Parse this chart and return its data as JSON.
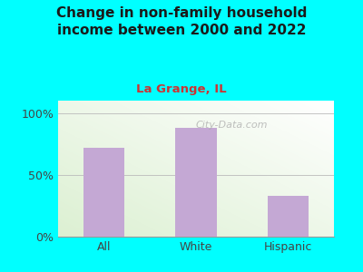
{
  "title": "Change in non-family household\nincome between 2000 and 2022",
  "subtitle": "La Grange, IL",
  "categories": [
    "All",
    "White",
    "Hispanic"
  ],
  "values": [
    72,
    88,
    33
  ],
  "bar_color": "#c4a8d4",
  "title_color": "#1a1a1a",
  "subtitle_color": "#cc3333",
  "background_outer": "#00ffff",
  "yticks": [
    0,
    50,
    100
  ],
  "ytick_labels": [
    "0%",
    "50%",
    "100%"
  ],
  "ylim": [
    0,
    110
  ],
  "watermark": "City-Data.com",
  "title_fontsize": 11,
  "subtitle_fontsize": 9.5,
  "tick_fontsize": 9
}
